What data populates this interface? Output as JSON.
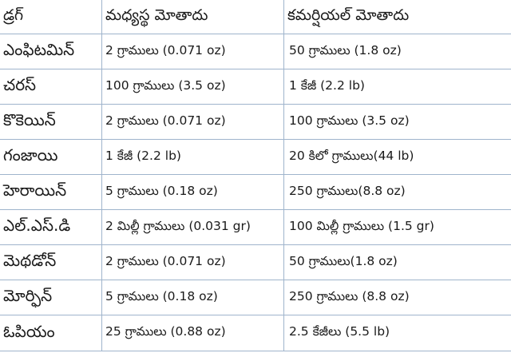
{
  "table": {
    "headers": [
      "డ్రగ్",
      "మధ్యస్థ మోతాదు",
      "కమర్షియల్ మోతాదు"
    ],
    "rows": [
      {
        "drug": "ఎంఫిటమిన్",
        "medium": "2 గ్రాములు  (0.071 oz)",
        "commercial": "50 గ్రాములు (1.8 oz)"
      },
      {
        "drug": "చరస్",
        "medium": "100 గ్రాములు (3.5 oz)",
        "commercial": "1 కేజీ (2.2 lb)"
      },
      {
        "drug": "కొకెయిన్",
        "medium": "2 గ్రాములు (0.071 oz)",
        "commercial": "100 గ్రాములు (3.5 oz)"
      },
      {
        "drug": "గంజాయి",
        "medium": "1 కేజీ (2.2 lb)",
        "commercial": "20 కిలో గ్రాములు(44 lb)"
      },
      {
        "drug": "హెరాయిన్",
        "medium": "5  గ్రాములు (0.18 oz)",
        "commercial": "250 గ్రాములు(8.8 oz)"
      },
      {
        "drug": "ఎల్.ఎస్.డి",
        "medium": "2 మిల్లీ గ్రాములు (0.031 gr)",
        "commercial": "100 మిల్లీ గ్రాములు (1.5 gr)"
      },
      {
        "drug": "మెథడోన్",
        "medium": "2 గ్రాములు (0.071 oz)",
        "commercial": "50  గ్రాములు(1.8 oz)"
      },
      {
        "drug": "మోర్ఫిన్",
        "medium": "5 గ్రాములు (0.18 oz)",
        "commercial": "250 గ్రాములు (8.8 oz)"
      },
      {
        "drug": "ఓపియం",
        "medium": "25 గ్రాములు (0.88 oz)",
        "commercial": "2.5 కేజీలు (5.5 lb)"
      }
    ]
  }
}
